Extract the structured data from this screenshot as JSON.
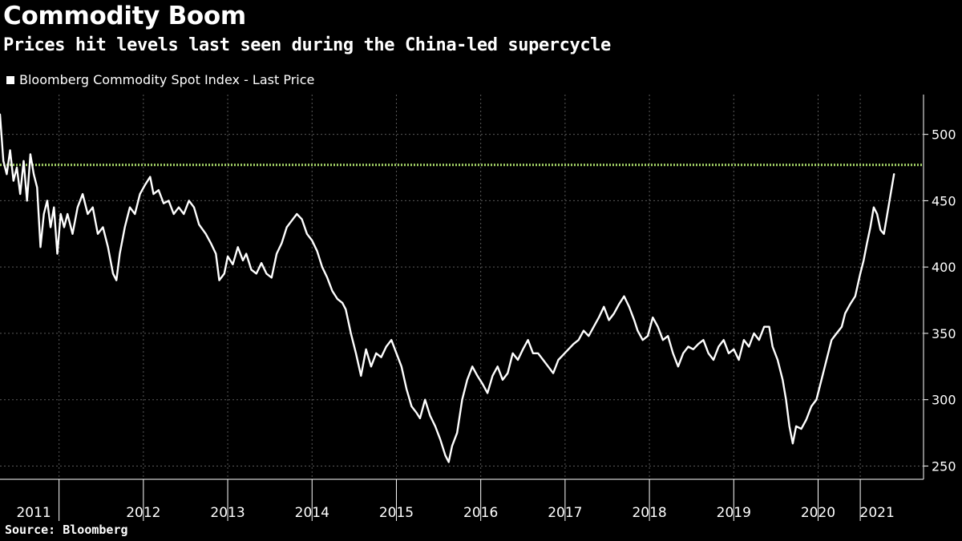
{
  "header": {
    "title": "Commodity Boom",
    "subtitle": "Prices hit levels last seen during the China-led supercycle"
  },
  "legend": {
    "label": "Bloomberg Commodity Spot Index - Last Price"
  },
  "footer": {
    "source": "Source: Bloomberg"
  },
  "colors": {
    "background": "#000000",
    "line": "#ffffff",
    "reference_line": "#a8d86a",
    "grid": "#5a5a5a"
  },
  "chart_data": {
    "type": "line",
    "title": "Commodity Boom",
    "subtitle": "Prices hit levels last seen during the China-led supercycle",
    "xlabel": "",
    "ylabel": "",
    "ylim": [
      240,
      530
    ],
    "xlim": [
      2010.8,
      2021.75
    ],
    "y_ticks": [
      250,
      300,
      350,
      400,
      450,
      500
    ],
    "y_tick_labels": [
      "250",
      "300",
      "350",
      "400",
      "450",
      "500"
    ],
    "x_tick_labels": [
      "2011",
      "2012",
      "2013",
      "2014",
      "2015",
      "2016",
      "2017",
      "2018",
      "2019",
      "2020",
      "2021"
    ],
    "x_label_positions": [
      2011.2,
      2012.5,
      2013.5,
      2014.5,
      2015.5,
      2016.5,
      2017.5,
      2018.5,
      2019.5,
      2020.5,
      2021.2
    ],
    "x_dividers": [
      2011.5,
      2012.5,
      2013.5,
      2014.5,
      2015.5,
      2016.5,
      2017.5,
      2018.5,
      2019.5,
      2020.5,
      2021.0
    ],
    "y_axis_position": "right",
    "grid": true,
    "reference_line": {
      "y": 477,
      "style": "dotted"
    },
    "series": [
      {
        "name": "Bloomberg Commodity Spot Index - Last Price",
        "points": [
          [
            2010.8,
            515
          ],
          [
            2010.84,
            480
          ],
          [
            2010.88,
            470
          ],
          [
            2010.92,
            488
          ],
          [
            2010.96,
            465
          ],
          [
            2011.0,
            475
          ],
          [
            2011.04,
            455
          ],
          [
            2011.08,
            480
          ],
          [
            2011.12,
            450
          ],
          [
            2011.16,
            485
          ],
          [
            2011.2,
            470
          ],
          [
            2011.24,
            460
          ],
          [
            2011.28,
            415
          ],
          [
            2011.32,
            440
          ],
          [
            2011.36,
            450
          ],
          [
            2011.4,
            430
          ],
          [
            2011.44,
            445
          ],
          [
            2011.48,
            410
          ],
          [
            2011.52,
            440
          ],
          [
            2011.56,
            430
          ],
          [
            2011.6,
            440
          ],
          [
            2011.66,
            425
          ],
          [
            2011.72,
            445
          ],
          [
            2011.78,
            455
          ],
          [
            2011.84,
            440
          ],
          [
            2011.9,
            445
          ],
          [
            2011.96,
            425
          ],
          [
            2012.02,
            430
          ],
          [
            2012.08,
            415
          ],
          [
            2012.14,
            395
          ],
          [
            2012.18,
            390
          ],
          [
            2012.22,
            410
          ],
          [
            2012.28,
            430
          ],
          [
            2012.34,
            445
          ],
          [
            2012.4,
            440
          ],
          [
            2012.46,
            455
          ],
          [
            2012.52,
            462
          ],
          [
            2012.58,
            468
          ],
          [
            2012.62,
            455
          ],
          [
            2012.68,
            458
          ],
          [
            2012.74,
            448
          ],
          [
            2012.8,
            450
          ],
          [
            2012.86,
            440
          ],
          [
            2012.92,
            445
          ],
          [
            2012.98,
            440
          ],
          [
            2013.04,
            450
          ],
          [
            2013.1,
            445
          ],
          [
            2013.16,
            432
          ],
          [
            2013.24,
            425
          ],
          [
            2013.3,
            418
          ],
          [
            2013.36,
            410
          ],
          [
            2013.4,
            390
          ],
          [
            2013.46,
            395
          ],
          [
            2013.5,
            408
          ],
          [
            2013.56,
            402
          ],
          [
            2013.62,
            415
          ],
          [
            2013.68,
            405
          ],
          [
            2013.72,
            410
          ],
          [
            2013.78,
            398
          ],
          [
            2013.84,
            395
          ],
          [
            2013.9,
            403
          ],
          [
            2013.96,
            395
          ],
          [
            2014.02,
            392
          ],
          [
            2014.08,
            410
          ],
          [
            2014.14,
            418
          ],
          [
            2014.2,
            430
          ],
          [
            2014.26,
            435
          ],
          [
            2014.32,
            440
          ],
          [
            2014.38,
            436
          ],
          [
            2014.44,
            425
          ],
          [
            2014.5,
            420
          ],
          [
            2014.56,
            412
          ],
          [
            2014.62,
            400
          ],
          [
            2014.68,
            392
          ],
          [
            2014.74,
            382
          ],
          [
            2014.8,
            376
          ],
          [
            2014.86,
            373
          ],
          [
            2014.9,
            368
          ],
          [
            2014.96,
            350
          ],
          [
            2015.02,
            335
          ],
          [
            2015.08,
            318
          ],
          [
            2015.14,
            338
          ],
          [
            2015.2,
            325
          ],
          [
            2015.26,
            335
          ],
          [
            2015.32,
            332
          ],
          [
            2015.38,
            340
          ],
          [
            2015.44,
            345
          ],
          [
            2015.5,
            335
          ],
          [
            2015.56,
            325
          ],
          [
            2015.62,
            308
          ],
          [
            2015.68,
            295
          ],
          [
            2015.74,
            290
          ],
          [
            2015.78,
            286
          ],
          [
            2015.84,
            300
          ],
          [
            2015.9,
            288
          ],
          [
            2015.96,
            280
          ],
          [
            2016.02,
            270
          ],
          [
            2016.08,
            258
          ],
          [
            2016.12,
            253
          ],
          [
            2016.16,
            265
          ],
          [
            2016.22,
            275
          ],
          [
            2016.28,
            300
          ],
          [
            2016.34,
            315
          ],
          [
            2016.4,
            325
          ],
          [
            2016.46,
            318
          ],
          [
            2016.52,
            312
          ],
          [
            2016.58,
            305
          ],
          [
            2016.64,
            318
          ],
          [
            2016.7,
            325
          ],
          [
            2016.76,
            315
          ],
          [
            2016.82,
            320
          ],
          [
            2016.88,
            335
          ],
          [
            2016.94,
            330
          ],
          [
            2017.0,
            338
          ],
          [
            2017.06,
            345
          ],
          [
            2017.12,
            335
          ],
          [
            2017.18,
            335
          ],
          [
            2017.24,
            330
          ],
          [
            2017.3,
            325
          ],
          [
            2017.36,
            320
          ],
          [
            2017.42,
            330
          ],
          [
            2017.48,
            334
          ],
          [
            2017.54,
            338
          ],
          [
            2017.6,
            342
          ],
          [
            2017.66,
            345
          ],
          [
            2017.72,
            352
          ],
          [
            2017.78,
            348
          ],
          [
            2017.84,
            355
          ],
          [
            2017.9,
            362
          ],
          [
            2017.96,
            370
          ],
          [
            2018.02,
            360
          ],
          [
            2018.08,
            365
          ],
          [
            2018.14,
            372
          ],
          [
            2018.2,
            378
          ],
          [
            2018.26,
            370
          ],
          [
            2018.32,
            360
          ],
          [
            2018.36,
            352
          ],
          [
            2018.42,
            345
          ],
          [
            2018.48,
            348
          ],
          [
            2018.54,
            362
          ],
          [
            2018.6,
            355
          ],
          [
            2018.66,
            345
          ],
          [
            2018.72,
            348
          ],
          [
            2018.78,
            335
          ],
          [
            2018.84,
            325
          ],
          [
            2018.9,
            335
          ],
          [
            2018.96,
            340
          ],
          [
            2019.02,
            338
          ],
          [
            2019.08,
            342
          ],
          [
            2019.14,
            345
          ],
          [
            2019.2,
            335
          ],
          [
            2019.26,
            330
          ],
          [
            2019.32,
            340
          ],
          [
            2019.38,
            345
          ],
          [
            2019.44,
            335
          ],
          [
            2019.5,
            338
          ],
          [
            2019.56,
            330
          ],
          [
            2019.62,
            345
          ],
          [
            2019.68,
            340
          ],
          [
            2019.74,
            350
          ],
          [
            2019.8,
            345
          ],
          [
            2019.86,
            355
          ],
          [
            2019.92,
            355
          ],
          [
            2019.96,
            340
          ],
          [
            2020.02,
            330
          ],
          [
            2020.08,
            315
          ],
          [
            2020.12,
            300
          ],
          [
            2020.16,
            280
          ],
          [
            2020.2,
            267
          ],
          [
            2020.24,
            280
          ],
          [
            2020.3,
            278
          ],
          [
            2020.36,
            285
          ],
          [
            2020.42,
            295
          ],
          [
            2020.48,
            300
          ],
          [
            2020.54,
            315
          ],
          [
            2020.6,
            330
          ],
          [
            2020.66,
            345
          ],
          [
            2020.72,
            350
          ],
          [
            2020.78,
            355
          ],
          [
            2020.82,
            365
          ],
          [
            2020.88,
            372
          ],
          [
            2020.94,
            378
          ],
          [
            2021.0,
            395
          ],
          [
            2021.04,
            405
          ],
          [
            2021.08,
            418
          ],
          [
            2021.12,
            430
          ],
          [
            2021.16,
            445
          ],
          [
            2021.2,
            440
          ],
          [
            2021.24,
            428
          ],
          [
            2021.28,
            425
          ],
          [
            2021.32,
            440
          ],
          [
            2021.36,
            455
          ],
          [
            2021.4,
            470
          ]
        ]
      }
    ]
  }
}
